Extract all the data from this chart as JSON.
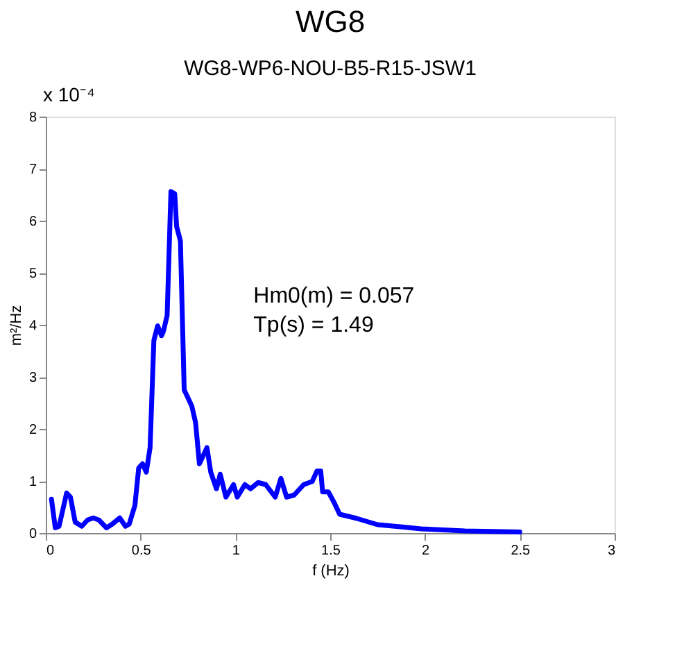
{
  "chart_data": {
    "type": "line",
    "title": "WG8",
    "subtitle": "WG8-WP6-NOU-B5-R15-JSW1",
    "xlabel": "f (Hz)",
    "ylabel": "m²/Hz",
    "annotations": [
      "x 10⁻⁴",
      "Hm0(m) = 0.057",
      "Tp(s) = 1.49"
    ],
    "x": [
      0.03,
      0.05,
      0.07,
      0.11,
      0.13,
      0.155,
      0.19,
      0.22,
      0.25,
      0.28,
      0.32,
      0.35,
      0.39,
      0.42,
      0.44,
      0.47,
      0.49,
      0.51,
      0.53,
      0.55,
      0.57,
      0.59,
      0.61,
      0.62,
      0.64,
      0.66,
      0.68,
      0.69,
      0.71,
      0.73,
      0.77,
      0.79,
      0.81,
      0.85,
      0.87,
      0.9,
      0.92,
      0.95,
      0.99,
      1.01,
      1.05,
      1.08,
      1.12,
      1.16,
      1.21,
      1.24,
      1.27,
      1.31,
      1.36,
      1.405,
      1.43,
      1.45,
      1.46,
      1.49,
      1.52,
      1.55,
      1.64,
      1.75,
      1.87,
      1.98,
      2.21,
      2.5
    ],
    "series": [
      {
        "color": "#0000ff",
        "values": [
          0.65,
          0.1,
          0.13,
          0.77,
          0.69,
          0.21,
          0.13,
          0.25,
          0.29,
          0.25,
          0.1,
          0.17,
          0.29,
          0.13,
          0.17,
          0.53,
          1.25,
          1.33,
          1.17,
          1.64,
          3.7,
          3.98,
          3.79,
          3.87,
          4.18,
          6.56,
          6.52,
          5.89,
          5.61,
          2.75,
          2.44,
          2.12,
          1.33,
          1.64,
          1.17,
          0.85,
          1.13,
          0.69,
          0.93,
          0.69,
          0.93,
          0.85,
          0.97,
          0.93,
          0.69,
          1.05,
          0.69,
          0.73,
          0.93,
          0.99,
          1.19,
          1.19,
          0.79,
          0.79,
          0.59,
          0.36,
          0.28,
          0.16,
          0.12,
          0.08,
          0.04,
          0.02
        ]
      }
    ],
    "xlim": [
      0,
      3
    ],
    "xticks": [
      0,
      0.5,
      1,
      1.5,
      2,
      2.5,
      3
    ],
    "ylim": [
      0,
      8
    ],
    "yticks": [
      0,
      1,
      2,
      3,
      4,
      5,
      6,
      7,
      8
    ],
    "grid": false,
    "marker": "none",
    "line_style": "solid"
  }
}
